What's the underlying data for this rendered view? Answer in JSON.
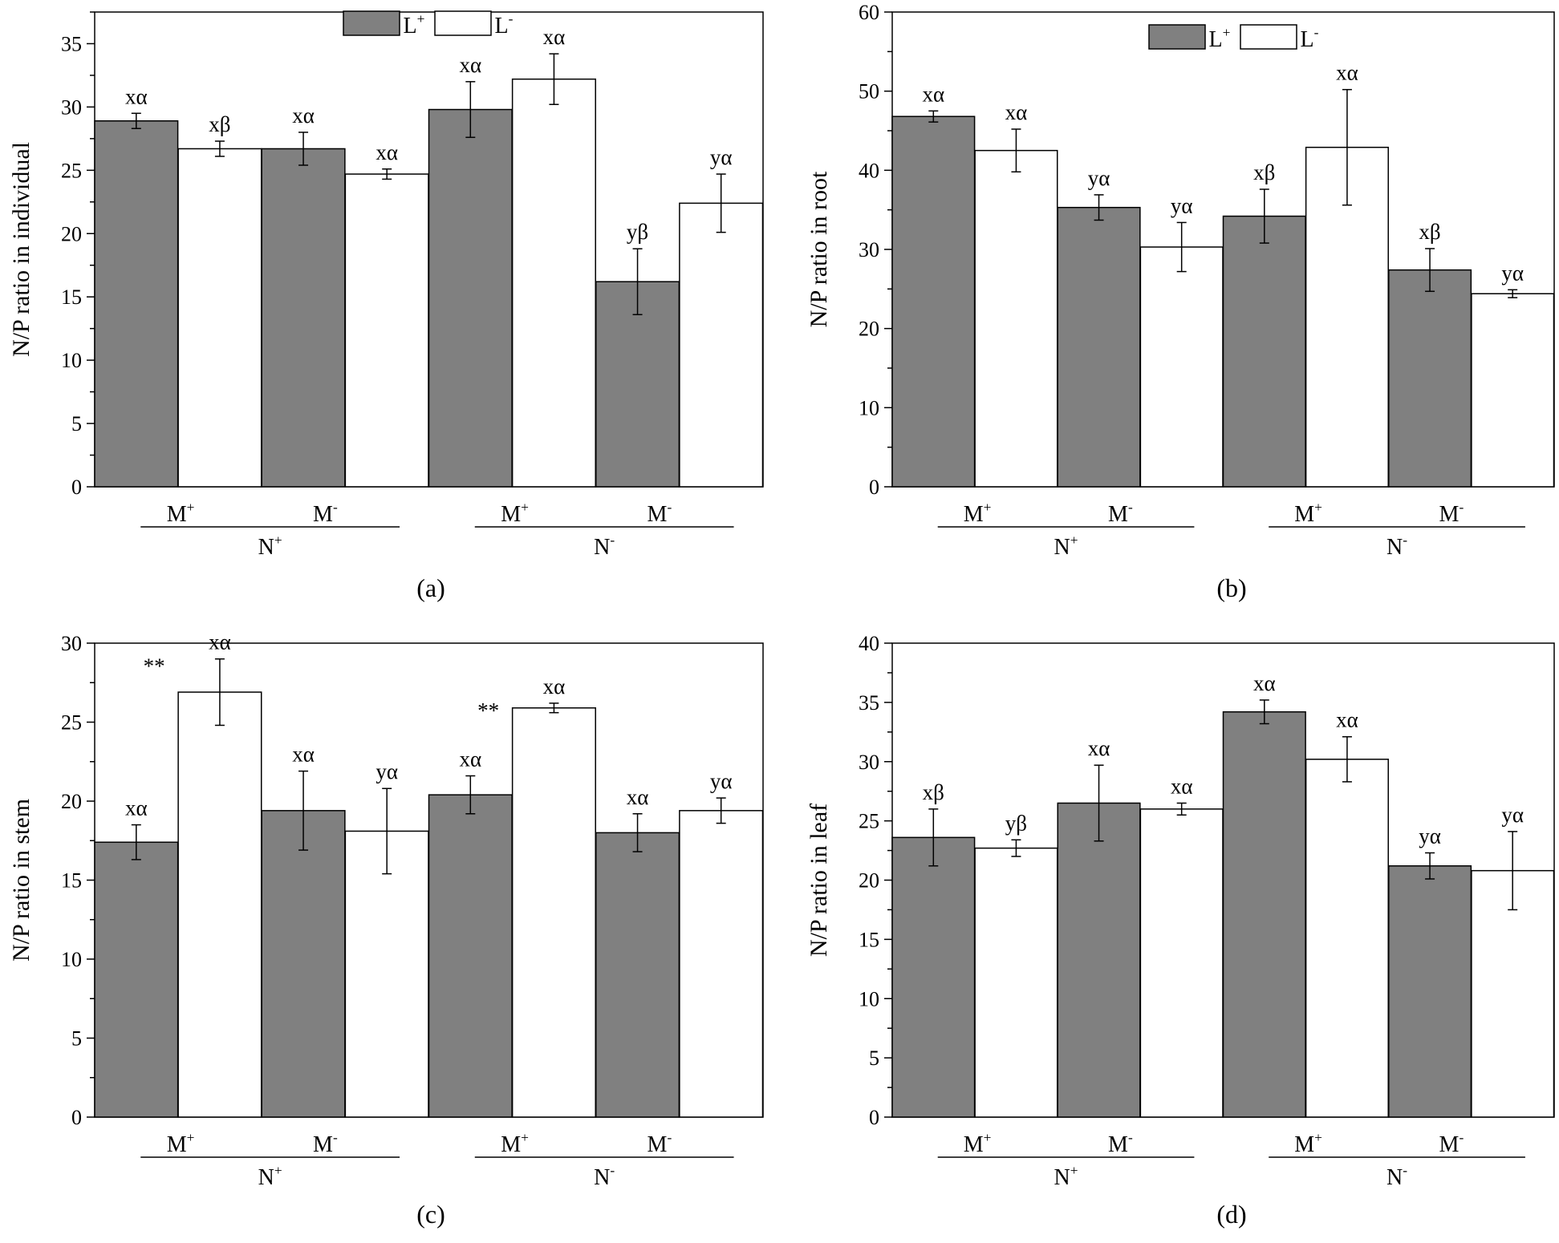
{
  "colors": {
    "lplus": "#808080",
    "lminus": "#ffffff",
    "stroke": "#000000"
  },
  "legend": {
    "lplus_base": "L",
    "lplus_sup": "+",
    "lminus_base": "L",
    "lminus_sup": "-"
  },
  "chart_data": [
    {
      "type": "bar",
      "panel_label": "(a)",
      "ylabel": "N/P ratio in individual",
      "ylim": [
        0,
        37.5
      ],
      "yticks": [
        0,
        5,
        10,
        15,
        20,
        25,
        30,
        35
      ],
      "categories": [
        {
          "base": "M",
          "sup": "+"
        },
        {
          "base": "M",
          "sup": "-"
        },
        {
          "base": "M",
          "sup": "+"
        },
        {
          "base": "M",
          "sup": "-"
        }
      ],
      "groups": [
        {
          "base": "N",
          "sup": "+"
        },
        {
          "base": "N",
          "sup": "-"
        }
      ],
      "legend": true,
      "series": [
        {
          "name": "L+",
          "values": [
            28.9,
            26.7,
            29.8,
            16.2
          ],
          "errors": [
            0.6,
            1.3,
            2.2,
            2.6
          ],
          "labels": [
            "xα",
            "xα",
            "xα",
            "yβ"
          ],
          "stars": [
            "",
            "",
            "",
            ""
          ]
        },
        {
          "name": "L-",
          "values": [
            26.7,
            24.7,
            32.2,
            22.4
          ],
          "errors": [
            0.6,
            0.4,
            2.0,
            2.3
          ],
          "labels": [
            "xβ",
            "xα",
            "xα",
            "yα"
          ],
          "stars": [
            "",
            "",
            "",
            ""
          ]
        }
      ]
    },
    {
      "type": "bar",
      "panel_label": "(b)",
      "ylabel": "N/P ratio in root",
      "ylim": [
        0,
        60
      ],
      "yticks": [
        0,
        10,
        20,
        30,
        40,
        50,
        60
      ],
      "categories": [
        {
          "base": "M",
          "sup": "+"
        },
        {
          "base": "M",
          "sup": "-"
        },
        {
          "base": "M",
          "sup": "+"
        },
        {
          "base": "M",
          "sup": "-"
        }
      ],
      "groups": [
        {
          "base": "N",
          "sup": "+"
        },
        {
          "base": "N",
          "sup": "-"
        }
      ],
      "legend": true,
      "series": [
        {
          "name": "L+",
          "values": [
            46.8,
            35.3,
            34.2,
            27.4
          ],
          "errors": [
            0.7,
            1.6,
            3.4,
            2.7
          ],
          "labels": [
            "xα",
            "yα",
            "xβ",
            "xβ"
          ],
          "stars": [
            "",
            "",
            "",
            ""
          ]
        },
        {
          "name": "L-",
          "values": [
            42.5,
            30.3,
            42.9,
            24.4
          ],
          "errors": [
            2.7,
            3.1,
            7.3,
            0.5
          ],
          "labels": [
            "xα",
            "yα",
            "xα",
            "yα"
          ],
          "stars": [
            "",
            "",
            "",
            ""
          ]
        }
      ]
    },
    {
      "type": "bar",
      "panel_label": "(c)",
      "ylabel": "N/P ratio in stem",
      "ylim": [
        0,
        30
      ],
      "yticks": [
        0,
        5,
        10,
        15,
        20,
        25,
        30
      ],
      "categories": [
        {
          "base": "M",
          "sup": "+"
        },
        {
          "base": "M",
          "sup": "-"
        },
        {
          "base": "M",
          "sup": "+"
        },
        {
          "base": "M",
          "sup": "-"
        }
      ],
      "groups": [
        {
          "base": "N",
          "sup": "+"
        },
        {
          "base": "N",
          "sup": "-"
        }
      ],
      "legend": false,
      "series": [
        {
          "name": "L+",
          "values": [
            17.4,
            19.4,
            20.4,
            18.0
          ],
          "errors": [
            1.1,
            2.5,
            1.2,
            1.2
          ],
          "labels": [
            "xα",
            "xα",
            "xα",
            "xα"
          ],
          "stars": [
            "",
            "",
            "",
            ""
          ]
        },
        {
          "name": "L-",
          "values": [
            26.9,
            18.1,
            25.9,
            19.4
          ],
          "errors": [
            2.1,
            2.7,
            0.3,
            0.8
          ],
          "labels": [
            "xα",
            "yα",
            "xα",
            "yα"
          ],
          "stars": [
            "**",
            "",
            "**",
            ""
          ]
        }
      ]
    },
    {
      "type": "bar",
      "panel_label": "(d)",
      "ylabel": "N/P ratio in leaf",
      "ylim": [
        0,
        40
      ],
      "yticks": [
        0,
        5,
        10,
        15,
        20,
        25,
        30,
        35,
        40
      ],
      "categories": [
        {
          "base": "M",
          "sup": "+"
        },
        {
          "base": "M",
          "sup": "-"
        },
        {
          "base": "M",
          "sup": "+"
        },
        {
          "base": "M",
          "sup": "-"
        }
      ],
      "groups": [
        {
          "base": "N",
          "sup": "+"
        },
        {
          "base": "N",
          "sup": "-"
        }
      ],
      "legend": false,
      "series": [
        {
          "name": "L+",
          "values": [
            23.6,
            26.5,
            34.2,
            21.2
          ],
          "errors": [
            2.4,
            3.2,
            1.0,
            1.1
          ],
          "labels": [
            "xβ",
            "xα",
            "xα",
            "yα"
          ],
          "stars": [
            "",
            "",
            "",
            ""
          ]
        },
        {
          "name": "L-",
          "values": [
            22.7,
            26.0,
            30.2,
            20.8
          ],
          "errors": [
            0.7,
            0.5,
            1.9,
            3.3
          ],
          "labels": [
            "yβ",
            "xα",
            "xα",
            "yα"
          ],
          "stars": [
            "",
            "",
            "",
            ""
          ]
        }
      ]
    }
  ]
}
